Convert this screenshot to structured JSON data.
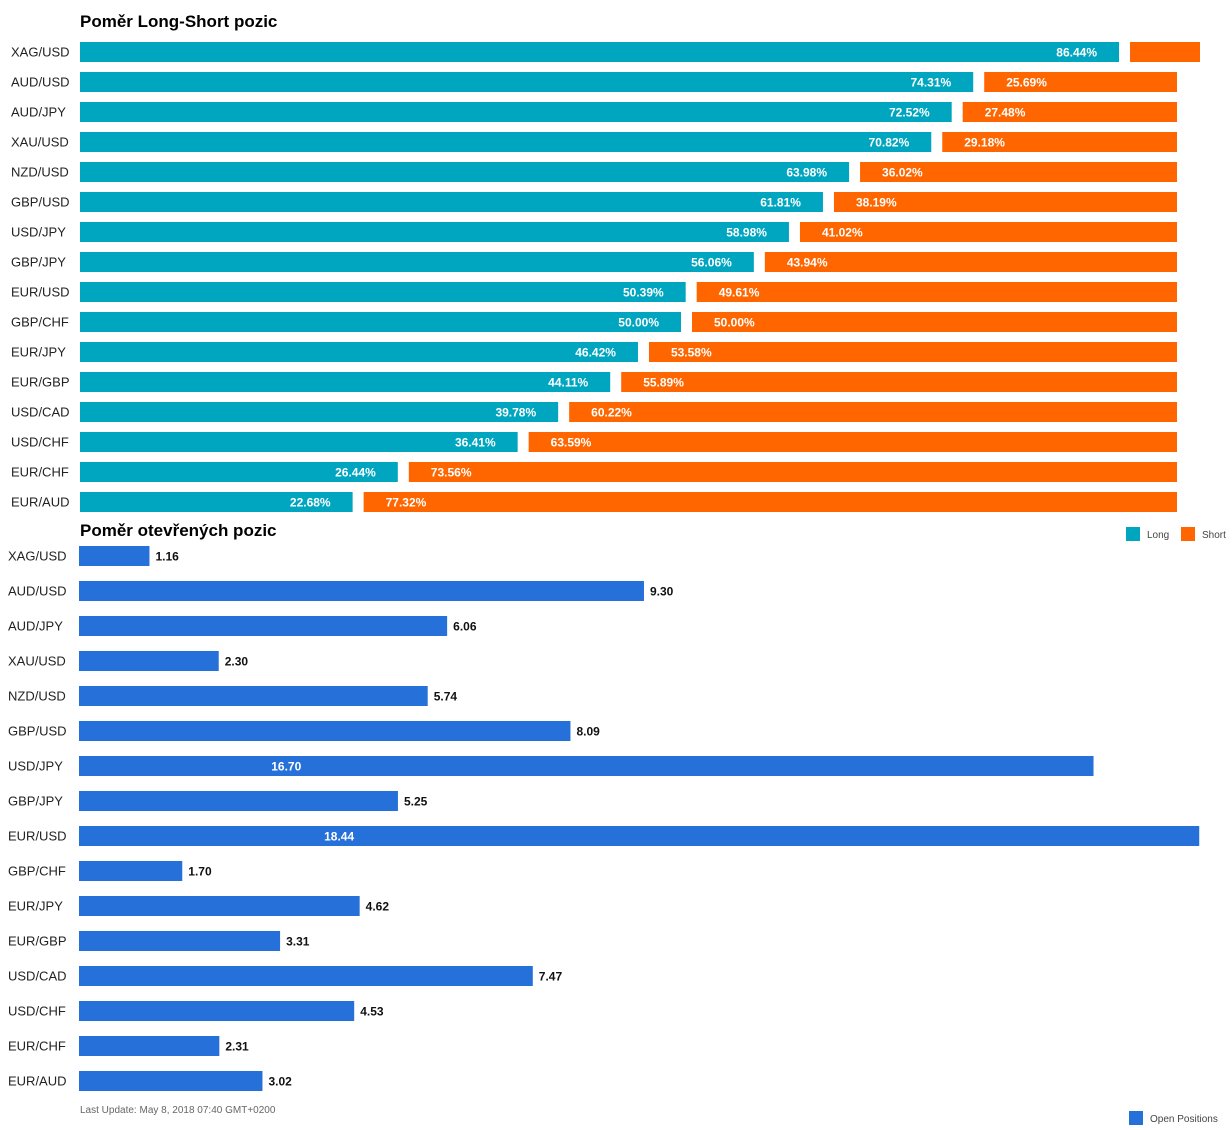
{
  "colors": {
    "long": "#00a6c0",
    "short": "#ff6600",
    "open_positions": "#2670d9"
  },
  "chart_data": [
    {
      "type": "bar",
      "orientation": "horizontal",
      "stacked": true,
      "title": "Poměr Long-Short pozic",
      "categories": [
        "XAG/USD",
        "AUD/USD",
        "AUD/JPY",
        "XAU/USD",
        "NZD/USD",
        "GBP/USD",
        "USD/JPY",
        "GBP/JPY",
        "EUR/USD",
        "GBP/CHF",
        "EUR/JPY",
        "EUR/GBP",
        "USD/CAD",
        "USD/CHF",
        "EUR/CHF",
        "EUR/AUD"
      ],
      "series": [
        {
          "name": "Long",
          "values": [
            86.44,
            74.31,
            72.52,
            70.82,
            63.98,
            61.81,
            58.98,
            56.06,
            50.39,
            50.0,
            46.42,
            44.11,
            39.78,
            36.41,
            26.44,
            22.68
          ]
        },
        {
          "name": "Short",
          "values": [
            13.56,
            25.69,
            27.48,
            29.18,
            36.02,
            38.19,
            41.02,
            43.94,
            49.61,
            50.0,
            53.58,
            55.89,
            60.22,
            63.59,
            73.56,
            77.32
          ]
        }
      ],
      "labels": {
        "long": [
          "86.44%",
          "74.31%",
          "72.52%",
          "70.82%",
          "63.98%",
          "61.81%",
          "58.98%",
          "56.06%",
          "50.39%",
          "50.00%",
          "46.42%",
          "44.11%",
          "39.78%",
          "36.41%",
          "26.44%",
          "22.68%"
        ],
        "short": [
          "",
          "25.69%",
          "27.48%",
          "29.18%",
          "36.02%",
          "38.19%",
          "41.02%",
          "43.94%",
          "49.61%",
          "50.00%",
          "53.58%",
          "55.89%",
          "60.22%",
          "63.59%",
          "73.56%",
          "77.32%"
        ]
      },
      "legend": [
        "Long",
        "Short"
      ],
      "legend_position": "right"
    },
    {
      "type": "bar",
      "orientation": "horizontal",
      "title": "Poměr otevřených pozic",
      "categories": [
        "XAG/USD",
        "AUD/USD",
        "AUD/JPY",
        "XAU/USD",
        "NZD/USD",
        "GBP/USD",
        "USD/JPY",
        "GBP/JPY",
        "EUR/USD",
        "GBP/CHF",
        "EUR/JPY",
        "EUR/GBP",
        "USD/CAD",
        "USD/CHF",
        "EUR/CHF",
        "EUR/AUD"
      ],
      "series": [
        {
          "name": "Open Positions",
          "values": [
            1.16,
            9.3,
            6.06,
            2.3,
            5.74,
            8.09,
            16.7,
            5.25,
            18.44,
            1.7,
            4.62,
            3.31,
            7.47,
            4.53,
            2.31,
            3.02
          ]
        }
      ],
      "labels": [
        "1.16",
        "9.30",
        "6.06",
        "2.30",
        "5.74",
        "8.09",
        "16.70",
        "5.25",
        "18.44",
        "1.70",
        "4.62",
        "3.31",
        "7.47",
        "4.53",
        "2.31",
        "3.02"
      ],
      "legend": [
        "Open Positions"
      ],
      "legend_position": "bottom-right"
    }
  ],
  "footer": {
    "last_update": "Last Update: May 8, 2018 07:40 GMT+0200"
  }
}
